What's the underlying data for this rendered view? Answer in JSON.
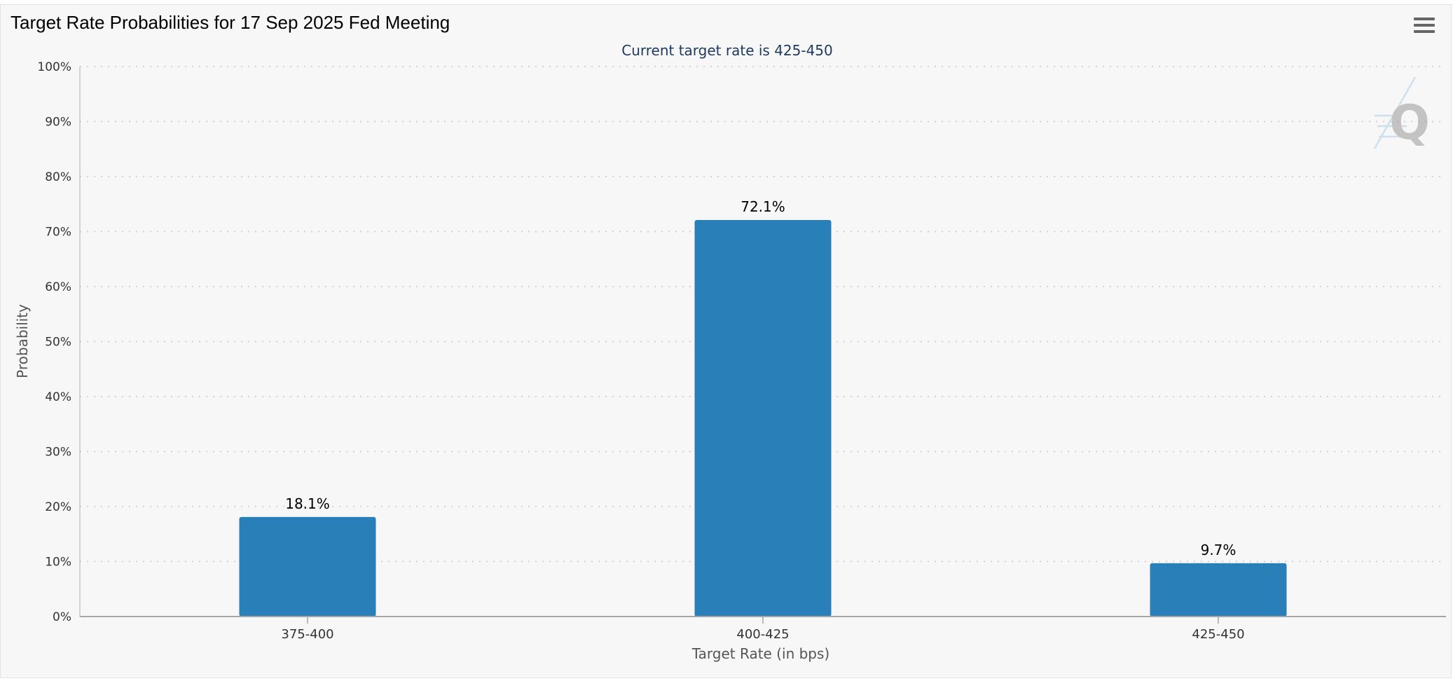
{
  "header": {
    "title": "Target Rate Probabilities for 17 Sep 2025 Fed Meeting",
    "menu_icon": "hamburger-menu-icon"
  },
  "watermark": {
    "letter": "Q"
  },
  "chart_data": {
    "type": "bar",
    "subtitle": "Current target rate is 425-450",
    "categories": [
      "375-400",
      "400-425",
      "425-450"
    ],
    "values": [
      18.1,
      72.1,
      9.7
    ],
    "data_labels": [
      "18.1%",
      "72.1%",
      "9.7%"
    ],
    "xlabel": "Target Rate (in bps)",
    "ylabel": "Probability",
    "ylim": [
      0,
      100
    ],
    "y_ticks": [
      "0%",
      "10%",
      "20%",
      "30%",
      "40%",
      "50%",
      "60%",
      "70%",
      "80%",
      "90%",
      "100%"
    ],
    "grid": true,
    "bar_color": "#2980b9",
    "subtitle_color": "#1f3a5f"
  }
}
